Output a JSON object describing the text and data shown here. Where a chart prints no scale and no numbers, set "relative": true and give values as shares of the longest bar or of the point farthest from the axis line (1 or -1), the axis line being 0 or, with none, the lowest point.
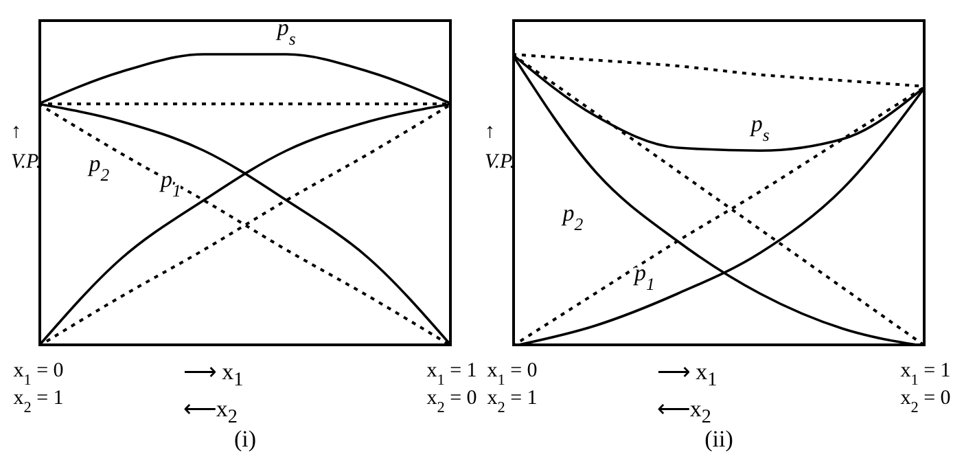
{
  "chart_data": [
    {
      "type": "line",
      "title": "(i)",
      "xlabel": "⟶ x$_{1}$\n⟵x$_{2}$",
      "ylabel": "↑\nV.P.",
      "relative": true,
      "categories": [
        "x$_{1}$ = 0\nx$_{2}$ = 1",
        null,
        null,
        null,
        null,
        "x$_{1}$ = 1\nx$_{2}$ = 0"
      ],
      "tick_labels": "x",
      "grid": false,
      "legend": false,
      "marker": "none",
      "series": [
        {
          "name": "p$_{s}$",
          "color": "#000000",
          "values": [
            0.83,
            0.94,
            1,
            1,
            0.94,
            0.83
          ]
        },
        {
          "name": "p$_{1}$",
          "color": "#000000",
          "values": [
            0,
            0.3,
            0.5,
            0.67,
            0.77,
            0.83
          ]
        },
        {
          "name": "p$_{2}$",
          "color": "#000000",
          "values": [
            0.83,
            0.77,
            0.67,
            0.5,
            0.3,
            0
          ]
        },
        {
          "color": "#000000",
          "line_style": "dotted",
          "values": [
            0.83,
            0.83,
            0.83,
            0.83,
            0.83,
            0.83
          ]
        },
        {
          "color": "#000000",
          "line_style": "dotted",
          "values": [
            0,
            0.17,
            0.33,
            0.5,
            0.66,
            0.83
          ]
        },
        {
          "color": "#000000",
          "line_style": "dotted",
          "values": [
            0.83,
            0.66,
            0.5,
            0.33,
            0.17,
            0
          ]
        }
      ]
    },
    {
      "type": "line",
      "title": "(ii)",
      "xlabel": "⟶ x$_{1}$\n⟵x$_{2}$",
      "ylabel": "↑\nV.P.",
      "relative": true,
      "categories": [
        "x$_{1}$ = 0\nx$_{2}$ = 1",
        null,
        null,
        null,
        null,
        "x$_{1}$ = 1\nx$_{2}$ = 0"
      ],
      "tick_labels": "x",
      "grid": false,
      "legend": false,
      "marker": "none",
      "series": [
        {
          "name": "p$_{s}$",
          "color": "#000000",
          "values": [
            1,
            0.79,
            0.68,
            0.67,
            0.71,
            0.89
          ]
        },
        {
          "name": "p$_{1}$",
          "color": "#000000",
          "values": [
            0,
            0.07,
            0.18,
            0.32,
            0.54,
            0.89
          ]
        },
        {
          "name": "p$_{2}$",
          "color": "#000000",
          "values": [
            1,
            0.6,
            0.36,
            0.18,
            0.06,
            0
          ]
        },
        {
          "color": "#000000",
          "line_style": "dotted",
          "values": [
            1,
            0.98,
            0.96,
            0.93,
            0.91,
            0.89
          ]
        },
        {
          "color": "#000000",
          "line_style": "dotted",
          "values": [
            0,
            0.18,
            0.36,
            0.53,
            0.71,
            0.89
          ]
        },
        {
          "color": "#000000",
          "line_style": "dotted",
          "values": [
            1,
            0.8,
            0.6,
            0.4,
            0.2,
            0
          ]
        }
      ]
    }
  ]
}
